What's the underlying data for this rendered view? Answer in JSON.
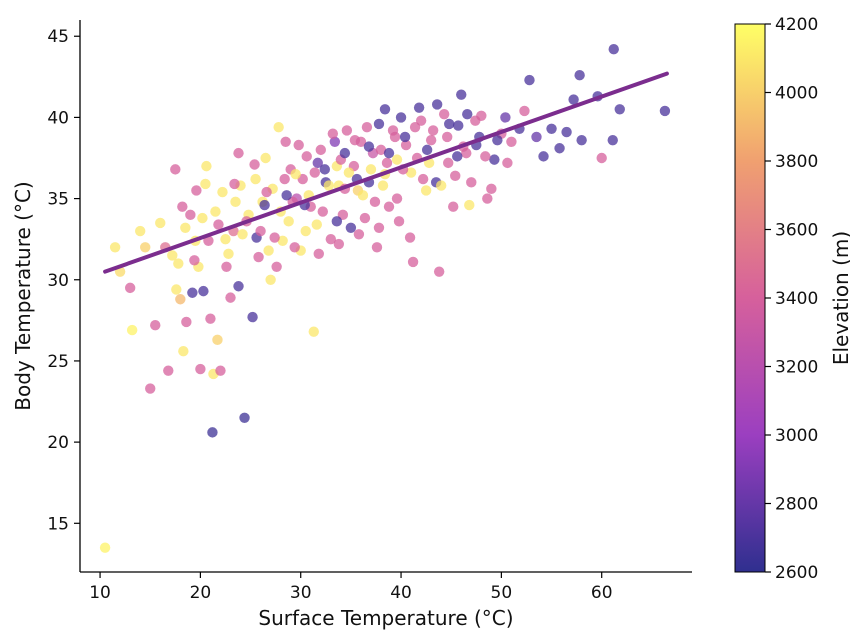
{
  "chart_data": {
    "type": "scatter",
    "title": "",
    "xlabel": "Surface Temperature (°C)",
    "ylabel": "Body Temperature (°C)",
    "xlim": [
      8,
      69
    ],
    "ylim": [
      12,
      46
    ],
    "x_ticks": [
      "10",
      "20",
      "30",
      "40",
      "50",
      "60"
    ],
    "y_ticks": [
      "15",
      "20",
      "25",
      "30",
      "35",
      "40",
      "45"
    ],
    "grid": false,
    "colorbar": {
      "label": "Elevation (m)",
      "range": [
        2600,
        4200
      ],
      "ticks": [
        "2600",
        "2800",
        "3000",
        "3200",
        "3400",
        "3600",
        "3800",
        "4000",
        "4200"
      ],
      "colormap": [
        "#2f2f8f",
        "#9b3fc0",
        "#d6609c",
        "#f0a070",
        "#ffff66"
      ]
    },
    "trend_line": {
      "x": [
        10.5,
        66.5
      ],
      "y": [
        30.5,
        42.7
      ],
      "color": "#7b2d8e"
    },
    "series": [
      {
        "points": [
          [
            10.5,
            13.5,
            4150
          ],
          [
            11.5,
            32,
            4100
          ],
          [
            12,
            30.5,
            4050
          ],
          [
            13,
            29.5,
            3400
          ],
          [
            13.2,
            26.9,
            4150
          ],
          [
            14,
            33,
            4100
          ],
          [
            14.5,
            32,
            4000
          ],
          [
            15,
            23.3,
            3400
          ],
          [
            15.5,
            27.2,
            3400
          ],
          [
            16,
            33.5,
            4100
          ],
          [
            16.5,
            32,
            3500
          ],
          [
            16.8,
            24.4,
            3400
          ],
          [
            17.2,
            31.5,
            4100
          ],
          [
            17.5,
            36.8,
            3400
          ],
          [
            17.6,
            29.4,
            4100
          ],
          [
            18,
            28.8,
            3900
          ],
          [
            18.3,
            25.6,
            4100
          ],
          [
            18.6,
            27.4,
            3400
          ],
          [
            19,
            34,
            3400
          ],
          [
            19.2,
            29.2,
            2700
          ],
          [
            19.6,
            35.5,
            3400
          ],
          [
            20,
            24.5,
            3400
          ],
          [
            20.3,
            29.3,
            2700
          ],
          [
            20.6,
            37,
            4100
          ],
          [
            21,
            27.6,
            3400
          ],
          [
            21.2,
            20.6,
            2650
          ],
          [
            21.3,
            24.2,
            4100
          ],
          [
            21.7,
            26.3,
            4000
          ],
          [
            22,
            24.4,
            3400
          ],
          [
            22.5,
            32.5,
            4100
          ],
          [
            23,
            28.9,
            3400
          ],
          [
            23.3,
            33,
            3500
          ],
          [
            23.8,
            29.6,
            2700
          ],
          [
            24.4,
            21.5,
            2650
          ],
          [
            25.2,
            27.7,
            2700
          ],
          [
            25.6,
            32.6,
            2700
          ],
          [
            26.5,
            37.5,
            4100
          ],
          [
            27,
            30,
            4100
          ],
          [
            27.8,
            39.4,
            4100
          ],
          [
            28.5,
            38.5,
            3400
          ],
          [
            29,
            36.8,
            3400
          ],
          [
            29.6,
            35,
            3200
          ],
          [
            30.2,
            36.2,
            3400
          ],
          [
            30.5,
            33,
            4100
          ],
          [
            31,
            34.5,
            3400
          ],
          [
            31.3,
            26.8,
            4100
          ],
          [
            31.7,
            37.2,
            2800
          ],
          [
            32,
            38,
            3400
          ],
          [
            32.5,
            36,
            2700
          ],
          [
            33,
            32.5,
            3400
          ],
          [
            33.4,
            38.5,
            2900
          ],
          [
            33.8,
            35.8,
            4100
          ],
          [
            34.2,
            34,
            3400
          ],
          [
            34.6,
            39.2,
            3400
          ],
          [
            35,
            33.2,
            2700
          ],
          [
            35.3,
            37,
            3400
          ],
          [
            35.7,
            35.5,
            4000
          ],
          [
            36,
            38.5,
            3400
          ],
          [
            36.4,
            33.8,
            3400
          ],
          [
            36.8,
            36,
            2700
          ],
          [
            37.2,
            37.8,
            3300
          ],
          [
            37.6,
            32,
            3400
          ],
          [
            38,
            38,
            3400
          ],
          [
            38.4,
            36.5,
            4100
          ],
          [
            38.8,
            34.5,
            3400
          ],
          [
            39.2,
            39.2,
            3400
          ],
          [
            39.6,
            35,
            3400
          ],
          [
            40,
            40,
            2700
          ],
          [
            40.5,
            38.3,
            3400
          ],
          [
            40.9,
            32.6,
            3400
          ],
          [
            41.2,
            31.1,
            3400
          ],
          [
            41.6,
            37.5,
            3400
          ],
          [
            42,
            39.8,
            3400
          ],
          [
            42.5,
            35.5,
            4100
          ],
          [
            43,
            38.6,
            3400
          ],
          [
            43.5,
            36,
            2700
          ],
          [
            43.8,
            30.5,
            3400
          ],
          [
            44.3,
            40.2,
            3400
          ],
          [
            44.7,
            37.2,
            3400
          ],
          [
            45.2,
            34.5,
            3400
          ],
          [
            45.7,
            39.5,
            2700
          ],
          [
            46,
            41.4,
            2700
          ],
          [
            46.5,
            37.8,
            3400
          ],
          [
            47,
            36,
            3400
          ],
          [
            47.5,
            38.3,
            2700
          ],
          [
            48,
            40.1,
            3400
          ],
          [
            48.6,
            35,
            3400
          ],
          [
            49.3,
            37.4,
            2700
          ],
          [
            50,
            39,
            3400
          ],
          [
            50.4,
            40,
            2800
          ],
          [
            51,
            38.5,
            3400
          ],
          [
            51.8,
            39.3,
            2700
          ],
          [
            52.3,
            40.4,
            3400
          ],
          [
            52.8,
            42.3,
            2700
          ],
          [
            53.5,
            38.8,
            2800
          ],
          [
            54.2,
            37.6,
            2700
          ],
          [
            55,
            39.3,
            2700
          ],
          [
            55.8,
            38.1,
            2700
          ],
          [
            56.5,
            39.1,
            2700
          ],
          [
            57.2,
            41.1,
            2700
          ],
          [
            57.8,
            42.6,
            2700
          ],
          [
            58,
            38.6,
            2700
          ],
          [
            59.6,
            41.3,
            2700
          ],
          [
            60,
            37.5,
            3400
          ],
          [
            61.1,
            38.6,
            2700
          ],
          [
            61.2,
            44.2,
            2700
          ],
          [
            61.8,
            40.5,
            2700
          ],
          [
            66.3,
            40.4,
            2700
          ],
          [
            18.5,
            33.2,
            4100
          ],
          [
            19.5,
            32.4,
            4100
          ],
          [
            20.2,
            33.8,
            4100
          ],
          [
            21.5,
            34.2,
            4100
          ],
          [
            22.2,
            35.4,
            4100
          ],
          [
            23.5,
            34.8,
            4100
          ],
          [
            24,
            35.8,
            4100
          ],
          [
            24.8,
            34,
            4100
          ],
          [
            25.5,
            36.2,
            4100
          ],
          [
            26.2,
            34.8,
            4100
          ],
          [
            27.2,
            35.6,
            4100
          ],
          [
            28,
            34.2,
            4100
          ],
          [
            28.8,
            33.6,
            4100
          ],
          [
            29.5,
            36.5,
            4100
          ],
          [
            30.8,
            35.2,
            4100
          ],
          [
            31.6,
            33.4,
            4100
          ],
          [
            32.8,
            35.8,
            4100
          ],
          [
            33.6,
            37,
            4100
          ],
          [
            34.8,
            36.6,
            4100
          ],
          [
            36.2,
            35.2,
            4100
          ],
          [
            37,
            36.8,
            4100
          ],
          [
            38.2,
            35.8,
            4100
          ],
          [
            39.6,
            37.4,
            4100
          ],
          [
            41,
            36.6,
            4100
          ],
          [
            42.8,
            37.2,
            4100
          ],
          [
            44,
            35.8,
            4100
          ],
          [
            46.8,
            34.6,
            4100
          ],
          [
            17.8,
            31,
            4100
          ],
          [
            19.8,
            30.8,
            4100
          ],
          [
            22.8,
            31.6,
            4100
          ],
          [
            24.2,
            32.8,
            4100
          ],
          [
            26.8,
            31.8,
            4100
          ],
          [
            28.2,
            32.4,
            4100
          ],
          [
            30,
            31.8,
            4100
          ],
          [
            20.5,
            35.9,
            4100
          ],
          [
            18.2,
            34.5,
            3400
          ],
          [
            19.4,
            31.2,
            3400
          ],
          [
            20.8,
            32.4,
            3400
          ],
          [
            21.8,
            33.4,
            3400
          ],
          [
            22.6,
            30.8,
            3400
          ],
          [
            23.4,
            35.9,
            3400
          ],
          [
            24.6,
            33.6,
            3400
          ],
          [
            25.4,
            37.1,
            3400
          ],
          [
            26,
            33,
            3400
          ],
          [
            26.6,
            35.4,
            3400
          ],
          [
            27.4,
            32.6,
            3400
          ],
          [
            28.4,
            36.2,
            3400
          ],
          [
            29.2,
            34.8,
            3400
          ],
          [
            29.8,
            38.3,
            3400
          ],
          [
            30.6,
            37.6,
            3400
          ],
          [
            31.4,
            36.6,
            3400
          ],
          [
            32.2,
            34.2,
            3400
          ],
          [
            33.2,
            39,
            3400
          ],
          [
            34,
            37.4,
            3400
          ],
          [
            34.4,
            35.6,
            3400
          ],
          [
            35.4,
            38.6,
            3400
          ],
          [
            36.6,
            39.4,
            3400
          ],
          [
            37.4,
            34.8,
            3400
          ],
          [
            38.6,
            37.2,
            3400
          ],
          [
            39.4,
            38.8,
            3400
          ],
          [
            40.2,
            36.8,
            3400
          ],
          [
            41.4,
            39.4,
            3400
          ],
          [
            42.2,
            36.2,
            3400
          ],
          [
            43.2,
            39.2,
            3400
          ],
          [
            44.6,
            38.8,
            3400
          ],
          [
            45.4,
            36.4,
            3400
          ],
          [
            46.2,
            38.2,
            3400
          ],
          [
            47.4,
            39.8,
            3400
          ],
          [
            48.4,
            37.6,
            3400
          ],
          [
            49,
            35.6,
            3400
          ],
          [
            50.6,
            37.2,
            3400
          ],
          [
            25.8,
            31.4,
            3400
          ],
          [
            27.6,
            30.8,
            3400
          ],
          [
            29.4,
            32,
            3400
          ],
          [
            31.8,
            31.6,
            3400
          ],
          [
            33.8,
            32.2,
            3400
          ],
          [
            35.8,
            32.8,
            3400
          ],
          [
            37.8,
            33.2,
            3400
          ],
          [
            39.8,
            33.6,
            3400
          ],
          [
            23.8,
            37.8,
            3400
          ],
          [
            30.4,
            34.6,
            2700
          ],
          [
            32.4,
            36.8,
            2700
          ],
          [
            33.6,
            33.6,
            2700
          ],
          [
            34.4,
            37.8,
            2700
          ],
          [
            35.6,
            36.2,
            2700
          ],
          [
            36.8,
            38.2,
            2700
          ],
          [
            37.8,
            39.6,
            2700
          ],
          [
            38.8,
            37.8,
            2700
          ],
          [
            40.4,
            38.8,
            2700
          ],
          [
            41.8,
            40.6,
            2700
          ],
          [
            42.6,
            38,
            2700
          ],
          [
            43.6,
            40.8,
            2700
          ],
          [
            44.8,
            39.6,
            2700
          ],
          [
            45.6,
            37.6,
            2700
          ],
          [
            46.6,
            40.2,
            2700
          ],
          [
            47.8,
            38.8,
            2700
          ],
          [
            49.6,
            38.6,
            2700
          ],
          [
            38.4,
            40.5,
            2700
          ],
          [
            28.6,
            35.2,
            2700
          ],
          [
            26.4,
            34.6,
            2700
          ]
        ]
      }
    ]
  }
}
